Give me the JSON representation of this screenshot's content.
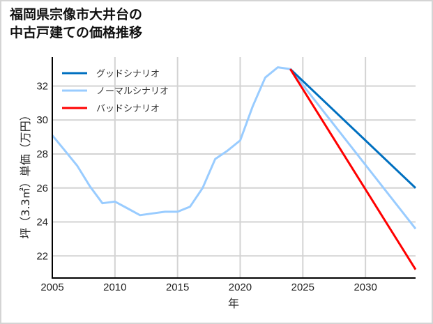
{
  "title": {
    "line1": "福岡県宗像市大井台の",
    "line2": "中古戸建ての価格推移"
  },
  "chart_data": {
    "type": "line",
    "title": "福岡県宗像市大井台の中古戸建ての価格推移",
    "xlabel": "年",
    "ylabel": "坪（3.3㎡）単価（万円）",
    "xlim": [
      2005,
      2034
    ],
    "ylim": [
      20.7,
      33.7
    ],
    "xticks": [
      2005,
      2010,
      2015,
      2020,
      2025,
      2030
    ],
    "yticks": [
      22,
      24,
      26,
      28,
      30,
      32
    ],
    "grid": true,
    "legend_position": "upper left",
    "series": [
      {
        "name": "グッドシナリオ",
        "color": "#0070c0",
        "x": [
          2024,
          2034
        ],
        "values": [
          33.0,
          26.0
        ]
      },
      {
        "name": "ノーマルシナリオ",
        "color": "#99ccff",
        "x": [
          2005,
          2006,
          2007,
          2008,
          2009,
          2010,
          2011,
          2012,
          2013,
          2014,
          2015,
          2016,
          2017,
          2018,
          2019,
          2020,
          2021,
          2022,
          2023,
          2024,
          2034
        ],
        "values": [
          29.1,
          28.2,
          27.3,
          26.1,
          25.1,
          25.2,
          24.8,
          24.4,
          24.5,
          24.6,
          24.6,
          24.9,
          26.0,
          27.7,
          28.2,
          28.8,
          30.8,
          32.5,
          33.1,
          33.0,
          23.6
        ]
      },
      {
        "name": "バッドシナリオ",
        "color": "#ff0000",
        "x": [
          2024,
          2034
        ],
        "values": [
          33.0,
          21.2
        ]
      }
    ]
  },
  "axes": {
    "x_ticks": [
      "2005",
      "2010",
      "2015",
      "2020",
      "2025",
      "2030"
    ],
    "y_ticks": [
      "22",
      "24",
      "26",
      "28",
      "30",
      "32"
    ],
    "xlabel": "年",
    "ylabel": "坪（3.3㎡）単価（万円）"
  },
  "legend": [
    {
      "label": "グッドシナリオ",
      "color": "#0070c0"
    },
    {
      "label": "ノーマルシナリオ",
      "color": "#99ccff"
    },
    {
      "label": "バッドシナリオ",
      "color": "#ff0000"
    }
  ]
}
